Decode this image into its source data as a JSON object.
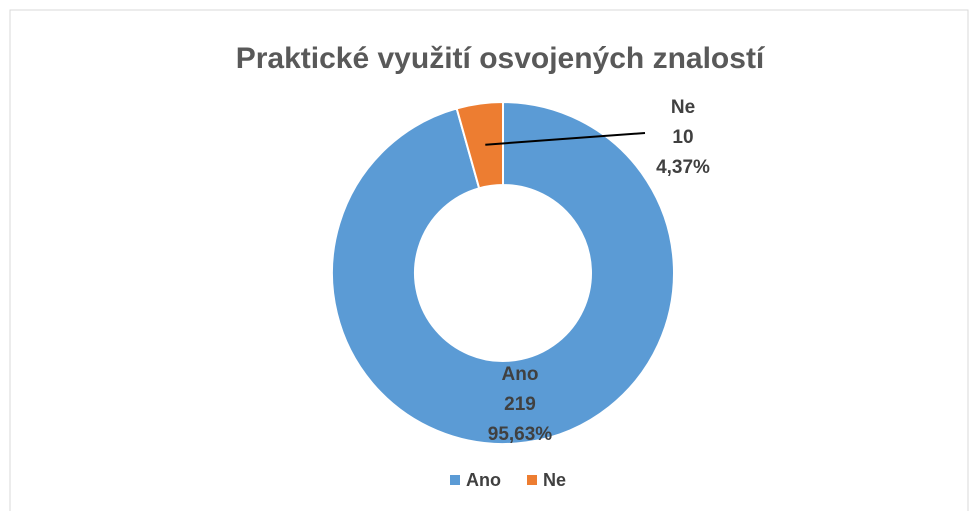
{
  "chart_data": {
    "type": "donut",
    "title": "Praktické využití osvojených znalostí",
    "categories": [
      "Ano",
      "Ne"
    ],
    "values": [
      219,
      10
    ],
    "percent_values": [
      95.63,
      4.37
    ],
    "percent_labels": [
      "95,63%",
      "4,37%"
    ],
    "colors": [
      "#5b9bd5",
      "#ed7d31"
    ],
    "legend": "bottom"
  }
}
